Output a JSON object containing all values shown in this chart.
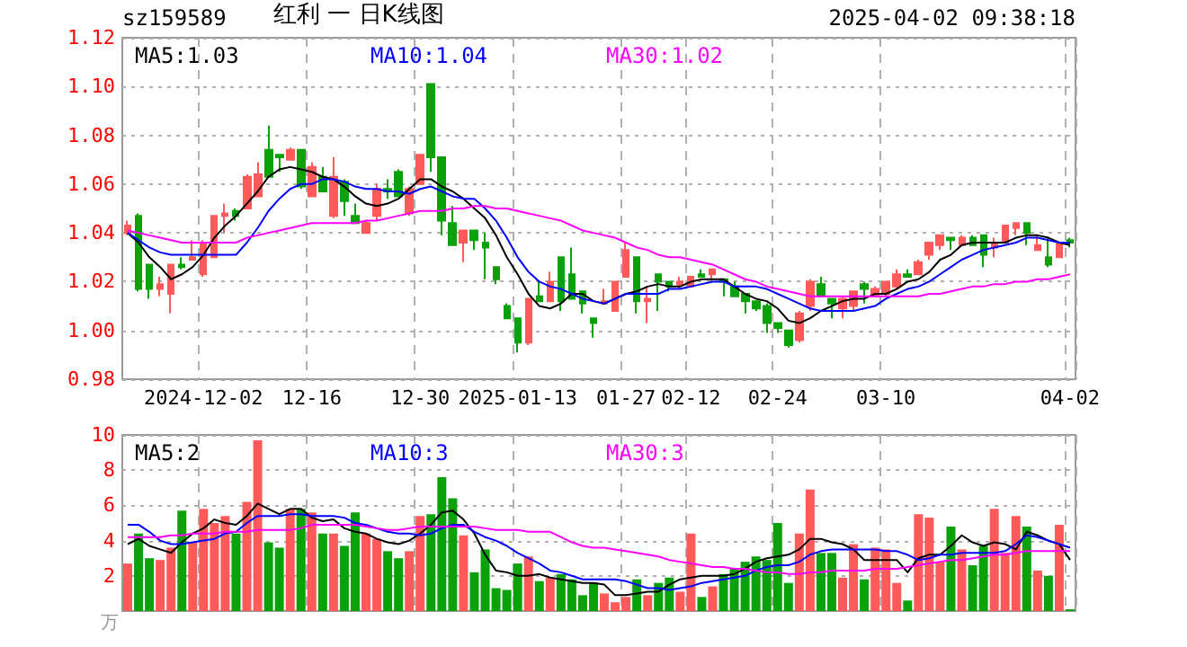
{
  "chart_data": [
    {
      "type": "candlestick",
      "title": "红利 一 日K线图",
      "subtitle": "sz159589",
      "annotations": [
        "2025-04-02 09:38:18"
      ],
      "categories": [
        null,
        null,
        null,
        null,
        null,
        null,
        null,
        "2024-12-02",
        null,
        null,
        null,
        null,
        null,
        null,
        null,
        null,
        null,
        "12-16",
        null,
        null,
        null,
        null,
        null,
        null,
        null,
        null,
        null,
        "12-30",
        null,
        null,
        null,
        null,
        null,
        null,
        null,
        null,
        "2025-01-13",
        null,
        null,
        null,
        null,
        null,
        null,
        null,
        null,
        null,
        "01-27",
        null,
        null,
        null,
        null,
        null,
        "02-12",
        null,
        null,
        null,
        null,
        null,
        null,
        null,
        "02-24",
        null,
        null,
        null,
        null,
        null,
        null,
        null,
        null,
        null,
        "03-10",
        null,
        null,
        null,
        null,
        null,
        null,
        null,
        null,
        null,
        null,
        null,
        null,
        null,
        null,
        null,
        null,
        "04-02"
      ],
      "ohlc": [
        [
          1.04,
          1.045,
          1.039,
          1.043
        ],
        [
          1.047,
          1.048,
          1.016,
          1.017
        ],
        [
          1.027,
          1.027,
          1.013,
          1.017
        ],
        [
          1.017,
          1.022,
          1.014,
          1.019
        ],
        [
          1.015,
          1.027,
          1.007,
          1.027
        ],
        [
          1.027,
          1.03,
          1.025,
          1.026
        ],
        [
          1.029,
          1.037,
          1.029,
          1.03
        ],
        [
          1.023,
          1.037,
          1.022,
          1.036
        ],
        [
          1.03,
          1.047,
          1.03,
          1.047
        ],
        [
          1.047,
          1.052,
          1.04,
          1.048
        ],
        [
          1.049,
          1.05,
          1.045,
          1.047
        ],
        [
          1.05,
          1.064,
          1.05,
          1.063
        ],
        [
          1.055,
          1.069,
          1.055,
          1.064
        ],
        [
          1.074,
          1.084,
          1.063,
          1.063
        ],
        [
          1.072,
          1.072,
          1.065,
          1.071
        ],
        [
          1.07,
          1.075,
          1.07,
          1.074
        ],
        [
          1.074,
          1.074,
          1.058,
          1.059
        ],
        [
          1.055,
          1.069,
          1.055,
          1.067
        ],
        [
          1.063,
          1.067,
          1.057,
          1.057
        ],
        [
          1.047,
          1.071,
          1.046,
          1.063
        ],
        [
          1.061,
          1.062,
          1.047,
          1.053
        ],
        [
          1.047,
          1.052,
          1.044,
          1.044
        ],
        [
          1.04,
          1.045,
          1.04,
          1.044
        ],
        [
          1.047,
          1.06,
          1.045,
          1.058
        ],
        [
          1.058,
          1.062,
          1.054,
          1.057
        ],
        [
          1.065,
          1.066,
          1.055,
          1.055
        ],
        [
          1.048,
          1.059,
          1.047,
          1.058
        ],
        [
          1.06,
          1.072,
          1.06,
          1.072
        ],
        [
          1.101,
          1.101,
          1.065,
          1.071
        ],
        [
          1.071,
          1.071,
          1.039,
          1.045
        ],
        [
          1.044,
          1.051,
          1.035,
          1.035
        ],
        [
          1.036,
          1.041,
          1.028,
          1.041
        ],
        [
          1.041,
          1.041,
          1.033,
          1.037
        ],
        [
          1.036,
          1.04,
          1.021,
          1.034
        ],
        [
          1.026,
          1.026,
          1.019,
          1.021
        ],
        [
          1.01,
          1.011,
          1.005,
          1.005
        ],
        [
          1.005,
          1.005,
          0.991,
          0.995
        ],
        [
          0.995,
          1.013,
          0.994,
          1.013
        ],
        [
          1.014,
          1.02,
          1.012,
          1.012
        ],
        [
          1.012,
          1.024,
          1.012,
          1.02
        ],
        [
          1.03,
          1.03,
          1.008,
          1.012
        ],
        [
          1.023,
          1.034,
          1.013,
          1.013
        ],
        [
          1.016,
          1.016,
          1.007,
          1.011
        ],
        [
          1.005,
          1.005,
          0.997,
          1.003
        ],
        [
          1.011,
          1.017,
          1.011,
          1.012
        ],
        [
          1.008,
          1.02,
          1.008,
          1.02
        ],
        [
          1.022,
          1.036,
          1.022,
          1.033
        ],
        [
          1.03,
          1.03,
          1.007,
          1.012
        ],
        [
          1.012,
          1.018,
          1.003,
          1.013
        ],
        [
          1.023,
          1.023,
          1.008,
          1.02
        ],
        [
          1.02,
          1.02,
          1.016,
          1.018
        ],
        [
          1.019,
          1.022,
          1.017,
          1.02
        ],
        [
          1.018,
          1.022,
          1.018,
          1.022
        ],
        [
          1.023,
          1.025,
          1.022,
          1.022
        ],
        [
          1.023,
          1.025,
          1.02,
          1.025
        ],
        [
          1.021,
          1.021,
          1.014,
          1.02
        ],
        [
          1.018,
          1.02,
          1.014,
          1.014
        ],
        [
          1.015,
          1.015,
          1.007,
          1.012
        ],
        [
          1.012,
          1.012,
          1.008,
          1.009
        ],
        [
          1.01,
          1.011,
          0.999,
          1.003
        ],
        [
          1.003,
          1.003,
          0.999,
          1.001
        ],
        [
          1.0,
          1.0,
          0.993,
          0.994
        ],
        [
          0.996,
          1.008,
          0.995,
          1.007
        ],
        [
          1.01,
          1.021,
          1.008,
          1.02
        ],
        [
          1.019,
          1.022,
          1.014,
          1.014
        ],
        [
          1.013,
          1.013,
          1.005,
          1.011
        ],
        [
          1.009,
          1.014,
          1.005,
          1.013
        ],
        [
          1.01,
          1.016,
          1.008,
          1.016
        ],
        [
          1.019,
          1.02,
          1.011,
          1.017
        ],
        [
          1.014,
          1.018,
          1.014,
          1.017
        ],
        [
          1.015,
          1.02,
          1.014,
          1.02
        ],
        [
          1.018,
          1.025,
          1.017,
          1.023
        ],
        [
          1.023,
          1.025,
          1.022,
          1.022
        ],
        [
          1.023,
          1.029,
          1.023,
          1.028
        ],
        [
          1.031,
          1.036,
          1.029,
          1.036
        ],
        [
          1.035,
          1.039,
          1.033,
          1.039
        ],
        [
          1.038,
          1.038,
          1.033,
          1.037
        ],
        [
          1.035,
          1.039,
          1.035,
          1.038
        ],
        [
          1.038,
          1.039,
          1.035,
          1.035
        ],
        [
          1.039,
          1.039,
          1.026,
          1.031
        ],
        [
          1.034,
          1.038,
          1.03,
          1.036
        ],
        [
          1.036,
          1.043,
          1.036,
          1.043
        ],
        [
          1.042,
          1.044,
          1.039,
          1.044
        ],
        [
          1.044,
          1.044,
          1.035,
          1.04
        ],
        [
          1.033,
          1.039,
          1.033,
          1.035
        ],
        [
          1.03,
          1.038,
          1.026,
          1.027
        ],
        [
          1.03,
          1.036,
          1.03,
          1.036
        ],
        [
          1.037,
          1.038,
          1.034,
          1.036
        ]
      ],
      "colors": [
        "#ff5a5a",
        "#0aa10a",
        "#0aa10a",
        "#ff5a5a",
        "#ff5a5a",
        "#0aa10a",
        "#ff5a5a",
        "#ff5a5a",
        "#ff5a5a",
        "#ff5a5a",
        "#0aa10a",
        "#ff5a5a",
        "#ff5a5a",
        "#0aa10a",
        "#0aa10a",
        "#ff5a5a",
        "#0aa10a",
        "#ff5a5a",
        "#0aa10a",
        "#ff5a5a",
        "#0aa10a",
        "#0aa10a",
        "#ff5a5a",
        "#ff5a5a",
        "#0aa10a",
        "#0aa10a",
        "#ff5a5a",
        "#ff5a5a",
        "#0aa10a",
        "#0aa10a",
        "#0aa10a",
        "#ff5a5a",
        "#0aa10a",
        "#0aa10a",
        "#0aa10a",
        "#0aa10a",
        "#0aa10a",
        "#ff5a5a",
        "#0aa10a",
        "#ff5a5a",
        "#0aa10a",
        "#0aa10a",
        "#0aa10a",
        "#0aa10a",
        "#ff5a5a",
        "#ff5a5a",
        "#ff5a5a",
        "#0aa10a",
        "#ff5a5a",
        "#0aa10a",
        "#0aa10a",
        "#ff5a5a",
        "#ff5a5a",
        "#0aa10a",
        "#ff5a5a",
        "#0aa10a",
        "#0aa10a",
        "#0aa10a",
        "#0aa10a",
        "#0aa10a",
        "#0aa10a",
        "#0aa10a",
        "#ff5a5a",
        "#ff5a5a",
        "#0aa10a",
        "#0aa10a",
        "#ff5a5a",
        "#ff5a5a",
        "#0aa10a",
        "#ff5a5a",
        "#ff5a5a",
        "#ff5a5a",
        "#0aa10a",
        "#ff5a5a",
        "#ff5a5a",
        "#ff5a5a",
        "#0aa10a",
        "#ff5a5a",
        "#0aa10a",
        "#0aa10a",
        "#ff5a5a",
        "#ff5a5a",
        "#ff5a5a",
        "#0aa10a",
        "#ff5a5a",
        "#0aa10a",
        "#ff5a5a",
        "#0aa10a"
      ],
      "series": [
        {
          "type": "line",
          "name": "MA5:1.03",
          "color": "#000000",
          "values": [
            1.04,
            1.036,
            1.03,
            1.026,
            1.021,
            1.023,
            1.026,
            1.031,
            1.038,
            1.043,
            1.047,
            1.052,
            1.057,
            1.063,
            1.066,
            1.067,
            1.066,
            1.065,
            1.063,
            1.062,
            1.059,
            1.055,
            1.052,
            1.051,
            1.052,
            1.054,
            1.058,
            1.062,
            1.062,
            1.059,
            1.057,
            1.054,
            1.05,
            1.046,
            1.039,
            1.03,
            1.023,
            1.015,
            1.01,
            1.009,
            1.011,
            1.015,
            1.015,
            1.012,
            1.011,
            1.013,
            1.015,
            1.016,
            1.018,
            1.019,
            1.018,
            1.018,
            1.02,
            1.021,
            1.021,
            1.021,
            1.018,
            1.015,
            1.013,
            1.012,
            1.009,
            1.004,
            1.003,
            1.005,
            1.008,
            1.01,
            1.012,
            1.013,
            1.013,
            1.015,
            1.015,
            1.017,
            1.02,
            1.021,
            1.024,
            1.029,
            1.031,
            1.035,
            1.036,
            1.036,
            1.036,
            1.036,
            1.038,
            1.039,
            1.039,
            1.038,
            1.036,
            1.035
          ]
        },
        {
          "type": "line",
          "name": "MA10:1.04",
          "color": "#0000ff",
          "values": [
            1.04,
            1.037,
            1.034,
            1.032,
            1.031,
            1.031,
            1.031,
            1.031,
            1.031,
            1.031,
            1.031,
            1.036,
            1.042,
            1.049,
            1.054,
            1.058,
            1.06,
            1.06,
            1.062,
            1.062,
            1.061,
            1.059,
            1.058,
            1.058,
            1.057,
            1.057,
            1.056,
            1.058,
            1.059,
            1.057,
            1.055,
            1.054,
            1.054,
            1.05,
            1.045,
            1.038,
            1.03,
            1.024,
            1.02,
            1.018,
            1.017,
            1.015,
            1.013,
            1.012,
            1.011,
            1.013,
            1.015,
            1.015,
            1.015,
            1.015,
            1.017,
            1.017,
            1.018,
            1.019,
            1.02,
            1.02,
            1.018,
            1.018,
            1.018,
            1.017,
            1.015,
            1.013,
            1.011,
            1.009,
            1.008,
            1.008,
            1.008,
            1.008,
            1.009,
            1.01,
            1.013,
            1.015,
            1.017,
            1.018,
            1.02,
            1.023,
            1.026,
            1.029,
            1.031,
            1.033,
            1.034,
            1.035,
            1.036,
            1.038,
            1.038,
            1.037,
            1.036,
            1.036
          ]
        },
        {
          "type": "line",
          "name": "MA30:1.02",
          "color": "#ff00ff",
          "values": [
            1.041,
            1.04,
            1.039,
            1.038,
            1.037,
            1.036,
            1.036,
            1.036,
            1.036,
            1.036,
            1.036,
            1.038,
            1.039,
            1.04,
            1.041,
            1.042,
            1.043,
            1.044,
            1.044,
            1.044,
            1.044,
            1.044,
            1.045,
            1.045,
            1.046,
            1.047,
            1.048,
            1.049,
            1.049,
            1.049,
            1.05,
            1.05,
            1.051,
            1.051,
            1.05,
            1.05,
            1.049,
            1.048,
            1.047,
            1.046,
            1.045,
            1.043,
            1.041,
            1.04,
            1.039,
            1.038,
            1.036,
            1.034,
            1.033,
            1.031,
            1.03,
            1.03,
            1.029,
            1.028,
            1.027,
            1.025,
            1.023,
            1.021,
            1.02,
            1.018,
            1.017,
            1.016,
            1.015,
            1.014,
            1.014,
            1.014,
            1.014,
            1.014,
            1.014,
            1.014,
            1.014,
            1.014,
            1.014,
            1.014,
            1.015,
            1.015,
            1.016,
            1.017,
            1.018,
            1.018,
            1.019,
            1.019,
            1.02,
            1.02,
            1.021,
            1.021,
            1.022,
            1.023
          ]
        }
      ],
      "ylim": [
        0.98,
        1.12
      ],
      "yticks": [
        0.98,
        {
          "value": 1,
          "label": "1.00"
        },
        1.02,
        1.04,
        1.06,
        1.08,
        {
          "value": 1.1,
          "label": "1.10"
        },
        1.12
      ],
      "grid": true,
      "legend": "top left",
      "marker": "none"
    },
    {
      "type": "bar",
      "ylabel": "万",
      "categories": [
        null,
        null,
        null,
        null,
        null,
        null,
        null,
        null,
        null,
        null,
        null,
        null,
        null,
        null,
        null,
        null,
        null,
        null,
        null,
        null,
        null,
        null,
        null,
        null,
        null,
        null,
        null,
        null,
        null,
        null,
        null,
        null,
        null,
        null,
        null,
        null,
        null,
        null,
        null,
        null,
        null,
        null,
        null,
        null,
        null,
        null,
        null,
        null,
        null,
        null,
        null,
        null,
        null,
        null,
        null,
        null,
        null,
        null,
        null,
        null,
        null,
        null,
        null,
        null,
        null,
        null,
        null,
        null,
        null,
        null,
        null,
        null,
        null,
        null,
        null,
        null,
        null,
        null,
        null,
        null,
        null,
        null,
        null,
        null,
        null,
        null,
        null,
        null
      ],
      "values": [
        2.7,
        4.4,
        3.0,
        2.9,
        3.6,
        5.7,
        3.9,
        5.8,
        5.0,
        5.4,
        4.4,
        6.2,
        9.7,
        3.9,
        3.6,
        5.8,
        5.8,
        5.6,
        4.4,
        4.4,
        3.7,
        5.6,
        4.4,
        4.1,
        3.4,
        3.0,
        3.4,
        5.4,
        5.5,
        7.6,
        6.4,
        4.3,
        2.2,
        3.5,
        1.3,
        1.2,
        2.7,
        3.1,
        1.7,
        1.9,
        2.1,
        1.8,
        0.9,
        1.6,
        1.0,
        0.5,
        0.8,
        1.8,
        0.9,
        1.6,
        1.9,
        1.1,
        4.4,
        0.8,
        1.4,
        2.1,
        2.4,
        2.8,
        3.1,
        2.9,
        5.0,
        1.6,
        4.4,
        6.9,
        3.3,
        3.3,
        1.9,
        3.8,
        1.8,
        3.6,
        3.5,
        1.6,
        0.6,
        5.5,
        5.3,
        2.8,
        4.8,
        3.5,
        2.6,
        3.7,
        5.8,
        3.3,
        5.4,
        4.8,
        2.3,
        2.0,
        4.9,
        0.1
      ],
      "colors": [
        "#ff5a5a",
        "#0aa10a",
        "#0aa10a",
        "#ff5a5a",
        "#ff5a5a",
        "#0aa10a",
        "#ff5a5a",
        "#ff5a5a",
        "#ff5a5a",
        "#ff5a5a",
        "#0aa10a",
        "#ff5a5a",
        "#ff5a5a",
        "#0aa10a",
        "#0aa10a",
        "#ff5a5a",
        "#0aa10a",
        "#ff5a5a",
        "#0aa10a",
        "#ff5a5a",
        "#0aa10a",
        "#0aa10a",
        "#ff5a5a",
        "#ff5a5a",
        "#0aa10a",
        "#0aa10a",
        "#ff5a5a",
        "#ff5a5a",
        "#0aa10a",
        "#0aa10a",
        "#0aa10a",
        "#ff5a5a",
        "#0aa10a",
        "#0aa10a",
        "#0aa10a",
        "#0aa10a",
        "#0aa10a",
        "#ff5a5a",
        "#0aa10a",
        "#ff5a5a",
        "#0aa10a",
        "#0aa10a",
        "#0aa10a",
        "#0aa10a",
        "#ff5a5a",
        "#ff5a5a",
        "#ff5a5a",
        "#0aa10a",
        "#ff5a5a",
        "#0aa10a",
        "#0aa10a",
        "#ff5a5a",
        "#ff5a5a",
        "#0aa10a",
        "#ff5a5a",
        "#0aa10a",
        "#0aa10a",
        "#0aa10a",
        "#0aa10a",
        "#0aa10a",
        "#0aa10a",
        "#0aa10a",
        "#ff5a5a",
        "#ff5a5a",
        "#0aa10a",
        "#0aa10a",
        "#ff5a5a",
        "#ff5a5a",
        "#0aa10a",
        "#ff5a5a",
        "#ff5a5a",
        "#ff5a5a",
        "#0aa10a",
        "#ff5a5a",
        "#ff5a5a",
        "#ff5a5a",
        "#0aa10a",
        "#ff5a5a",
        "#0aa10a",
        "#0aa10a",
        "#ff5a5a",
        "#ff5a5a",
        "#ff5a5a",
        "#0aa10a",
        "#ff5a5a",
        "#0aa10a",
        "#ff5a5a",
        "#0aa10a"
      ],
      "series": [
        {
          "type": "line",
          "name": "MA5:2",
          "color": "#000000",
          "values": [
            3.8,
            4.1,
            3.7,
            3.5,
            3.3,
            3.9,
            4.4,
            4.7,
            5.2,
            5.0,
            4.9,
            5.4,
            6.1,
            5.8,
            5.5,
            5.8,
            5.8,
            5.3,
            5.1,
            5.2,
            4.7,
            4.5,
            4.4,
            4.1,
            3.9,
            3.8,
            4.0,
            4.4,
            4.9,
            5.6,
            5.7,
            5.2,
            4.4,
            3.2,
            2.3,
            2.2,
            2.0,
            2.0,
            2.1,
            1.9,
            1.8,
            1.7,
            1.6,
            1.6,
            1.5,
            0.9,
            0.9,
            1.0,
            1.1,
            1.1,
            1.5,
            1.8,
            1.9,
            2.0,
            2.0,
            2.0,
            2.1,
            2.4,
            2.8,
            3.0,
            3.1,
            3.2,
            3.5,
            4.1,
            4.1,
            3.9,
            3.8,
            3.5,
            2.9,
            2.9,
            2.9,
            2.9,
            2.2,
            3.0,
            3.2,
            3.2,
            3.7,
            4.3,
            3.9,
            3.7,
            3.9,
            3.8,
            3.5,
            4.5,
            4.3,
            4.0,
            3.8,
            2.9
          ]
        },
        {
          "type": "line",
          "name": "MA10:3",
          "color": "#0000ff",
          "values": [
            4.9,
            4.9,
            4.5,
            4.0,
            3.8,
            3.8,
            3.9,
            4.0,
            4.1,
            4.4,
            4.5,
            5.0,
            5.4,
            5.4,
            5.4,
            5.5,
            5.5,
            5.4,
            5.4,
            5.4,
            5.3,
            5.0,
            4.9,
            4.7,
            4.5,
            4.4,
            4.4,
            4.3,
            4.4,
            4.7,
            4.9,
            4.9,
            4.5,
            4.2,
            4.0,
            3.7,
            3.3,
            3.0,
            2.7,
            2.3,
            2.2,
            2.0,
            1.8,
            1.8,
            1.8,
            1.8,
            1.7,
            1.5,
            1.3,
            1.3,
            1.2,
            1.3,
            1.4,
            1.6,
            1.7,
            1.8,
            1.9,
            2.0,
            2.3,
            2.5,
            2.6,
            2.6,
            2.8,
            3.2,
            3.4,
            3.5,
            3.5,
            3.5,
            3.5,
            3.5,
            3.4,
            3.4,
            3.2,
            2.9,
            3.0,
            3.2,
            3.2,
            3.3,
            3.3,
            3.3,
            3.3,
            3.4,
            3.8,
            4.3,
            4.2,
            4.0,
            3.8,
            3.6
          ]
        },
        {
          "type": "line",
          "name": "MA30:3",
          "color": "#ff00ff",
          "values": [
            4.2,
            4.2,
            4.2,
            4.2,
            4.3,
            4.3,
            4.4,
            4.4,
            4.4,
            4.5,
            4.5,
            4.5,
            4.6,
            4.6,
            4.6,
            4.6,
            4.7,
            4.9,
            4.9,
            4.9,
            4.9,
            4.9,
            4.8,
            4.7,
            4.6,
            4.6,
            4.7,
            4.8,
            4.8,
            4.8,
            4.8,
            4.8,
            4.8,
            4.7,
            4.6,
            4.6,
            4.6,
            4.5,
            4.5,
            4.5,
            4.2,
            3.9,
            3.7,
            3.6,
            3.6,
            3.5,
            3.4,
            3.3,
            3.2,
            3.1,
            2.9,
            2.8,
            2.7,
            2.6,
            2.5,
            2.5,
            2.4,
            2.4,
            2.3,
            2.2,
            2.2,
            2.1,
            2.1,
            2.2,
            2.2,
            2.3,
            2.3,
            2.3,
            2.3,
            2.4,
            2.4,
            2.4,
            2.5,
            2.6,
            2.7,
            2.8,
            2.9,
            2.9,
            3.0,
            3.1,
            3.2,
            3.2,
            3.3,
            3.4,
            3.4,
            3.4,
            3.4,
            3.4
          ]
        }
      ],
      "ylim": [
        0,
        10
      ],
      "yticks": [
        2,
        4,
        6,
        8,
        10
      ],
      "grid": true,
      "legend": "top left",
      "marker": "none",
      "tick_labels": "y"
    }
  ]
}
